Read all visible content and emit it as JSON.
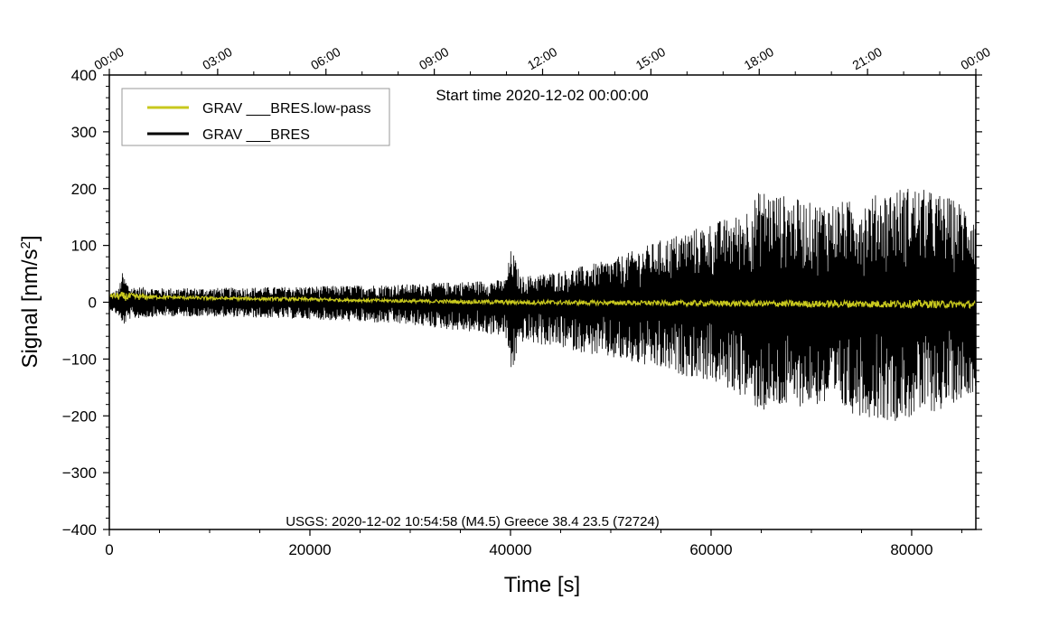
{
  "chart_data": {
    "type": "line",
    "start_time_text": "Start time 2020-12-02 00:00:00",
    "event_annotation": "USGS: 2020-12-02 10:54:58 (M4.5) Greece 38.4 23.5 (72724)",
    "xlabel": "Time [s]",
    "ylabel": "Signal [nm/s",
    "ylabel_superscript": "2",
    "ylabel_suffix": "]",
    "xlim": [
      0,
      86400
    ],
    "ylim": [
      -400,
      400
    ],
    "x_ticks": [
      0,
      20000,
      40000,
      60000,
      80000
    ],
    "x_tick_labels": [
      "0",
      "20000",
      "40000",
      "60000",
      "80000"
    ],
    "y_ticks": [
      400,
      300,
      200,
      100,
      0,
      -100,
      -200,
      -300,
      -400
    ],
    "y_tick_labels": [
      "400",
      "300",
      "200",
      "100",
      "0",
      "−100",
      "−200",
      "−300",
      "−400"
    ],
    "top_ticks_seconds": [
      0,
      10800,
      21600,
      32400,
      43200,
      54000,
      64800,
      75600,
      86400
    ],
    "top_tick_labels": [
      "00:00",
      "03:00",
      "06:00",
      "09:00",
      "12:00",
      "15:00",
      "18:00",
      "21:00",
      "00:00"
    ],
    "legend": [
      {
        "label": "GRAV ___BRES.low-pass",
        "color": "#c8c81e"
      },
      {
        "label": "GRAV ___BRES",
        "color": "#000000"
      }
    ],
    "series": [
      {
        "name": "GRAV ___BRES",
        "color": "#000000",
        "envelope_x": [
          0,
          1000,
          1200,
          2000,
          5000,
          10000,
          20000,
          30000,
          39500,
          40100,
          41000,
          45000,
          50000,
          55000,
          60000,
          63000,
          65000,
          70000,
          75000,
          78000,
          80000,
          83000,
          86400
        ],
        "envelope_upper": [
          15,
          25,
          55,
          28,
          25,
          25,
          28,
          32,
          40,
          98,
          45,
          55,
          75,
          110,
          140,
          155,
          200,
          175,
          180,
          200,
          205,
          190,
          165
        ],
        "envelope_lower": [
          -12,
          -25,
          -45,
          -30,
          -25,
          -25,
          -30,
          -40,
          -60,
          -130,
          -70,
          -80,
          -100,
          -120,
          -140,
          -165,
          -195,
          -180,
          -200,
          -210,
          -205,
          -190,
          -155
        ]
      },
      {
        "name": "GRAV ___BRES.low-pass",
        "color": "#c8c81e",
        "x": [
          0,
          1200,
          5000,
          10000,
          20000,
          30000,
          40000,
          50000,
          60000,
          70000,
          80000,
          86400
        ],
        "y": [
          12,
          10,
          9,
          7,
          5,
          2,
          0,
          -1,
          -2,
          -3,
          -3,
          -4
        ],
        "noise_amplitude": [
          3,
          8,
          3,
          3,
          3,
          3,
          4,
          4,
          5,
          6,
          7,
          6
        ]
      }
    ],
    "grid": false,
    "legend_position": "top-left"
  }
}
